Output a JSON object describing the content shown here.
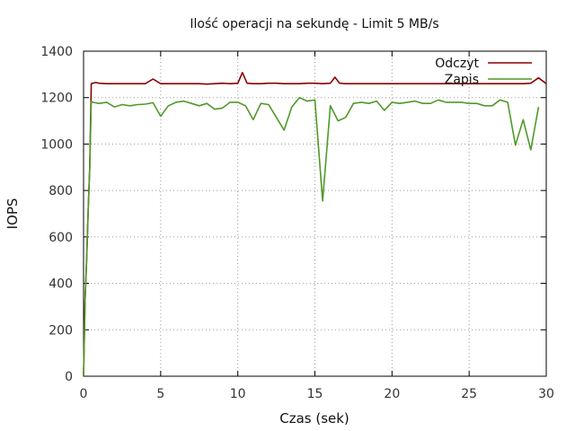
{
  "chart_data": {
    "type": "line",
    "title": "Ilość operacji na sekundę - Limit 5 MB/s",
    "xlabel": "Czas (sek)",
    "ylabel": "IOPS",
    "xlim": [
      0,
      30
    ],
    "ylim": [
      0,
      1400
    ],
    "xticks": [
      0,
      5,
      10,
      15,
      20,
      25,
      30
    ],
    "yticks": [
      0,
      200,
      400,
      600,
      800,
      1000,
      1200,
      1400
    ],
    "grid": true,
    "legend_position": "top-right",
    "series": [
      {
        "name": "Odczyt",
        "color": "#8b0000",
        "x": [
          0,
          0.1,
          0.2,
          0.3,
          0.4,
          0.5,
          0.6,
          0.8,
          1.0,
          1.5,
          2.0,
          2.5,
          3.0,
          3.5,
          4.0,
          4.5,
          5.0,
          5.5,
          6.0,
          6.5,
          7.0,
          7.5,
          8.0,
          8.5,
          9.0,
          9.5,
          10.0,
          10.3,
          10.6,
          11.0,
          11.5,
          12.0,
          12.5,
          13.0,
          13.5,
          14.0,
          14.5,
          15.0,
          15.5,
          16.0,
          16.3,
          16.6,
          17.0,
          17.5,
          18.0,
          18.5,
          19.0,
          19.5,
          20.0,
          20.5,
          21.0,
          21.5,
          22.0,
          22.5,
          23.0,
          23.5,
          24.0,
          24.5,
          25.0,
          25.5,
          26.0,
          26.5,
          27.0,
          27.5,
          28.0,
          28.5,
          29.0,
          29.5,
          30.0
        ],
        "y": [
          0,
          330,
          500,
          720,
          900,
          1260,
          1262,
          1265,
          1262,
          1260,
          1260,
          1260,
          1260,
          1260,
          1260,
          1280,
          1260,
          1260,
          1260,
          1260,
          1260,
          1260,
          1258,
          1260,
          1262,
          1260,
          1262,
          1308,
          1262,
          1260,
          1260,
          1262,
          1262,
          1260,
          1260,
          1260,
          1262,
          1262,
          1260,
          1262,
          1288,
          1262,
          1260,
          1260,
          1260,
          1260,
          1260,
          1260,
          1260,
          1260,
          1260,
          1260,
          1260,
          1260,
          1260,
          1260,
          1260,
          1260,
          1260,
          1260,
          1260,
          1260,
          1260,
          1260,
          1260,
          1260,
          1262,
          1285,
          1260
        ]
      },
      {
        "name": "Zapis",
        "color": "#4f9a28",
        "x": [
          0,
          0.1,
          0.2,
          0.3,
          0.4,
          0.5,
          0.6,
          1.0,
          1.5,
          2.0,
          2.5,
          3.0,
          3.5,
          4.0,
          4.5,
          5.0,
          5.5,
          6.0,
          6.5,
          7.0,
          7.5,
          8.0,
          8.5,
          9.0,
          9.5,
          10.0,
          10.5,
          11.0,
          11.5,
          12.0,
          12.5,
          13.0,
          13.5,
          14.0,
          14.5,
          15.0,
          15.5,
          16.0,
          16.5,
          17.0,
          17.5,
          18.0,
          18.5,
          19.0,
          19.5,
          20.0,
          20.5,
          21.0,
          21.5,
          22.0,
          22.5,
          23.0,
          23.5,
          24.0,
          24.5,
          25.0,
          25.5,
          26.0,
          26.5,
          27.0,
          27.5,
          28.0,
          28.5,
          29.0,
          29.5
        ],
        "y": [
          0,
          330,
          500,
          720,
          900,
          1185,
          1180,
          1175,
          1180,
          1160,
          1170,
          1165,
          1170,
          1172,
          1178,
          1120,
          1165,
          1180,
          1185,
          1175,
          1165,
          1175,
          1150,
          1155,
          1180,
          1180,
          1165,
          1105,
          1175,
          1170,
          1115,
          1060,
          1160,
          1200,
          1185,
          1190,
          755,
          1165,
          1100,
          1115,
          1175,
          1180,
          1175,
          1185,
          1145,
          1180,
          1175,
          1180,
          1185,
          1175,
          1175,
          1190,
          1180,
          1180,
          1180,
          1175,
          1175,
          1165,
          1165,
          1190,
          1180,
          995,
          1105,
          975,
          1160
        ]
      }
    ]
  }
}
